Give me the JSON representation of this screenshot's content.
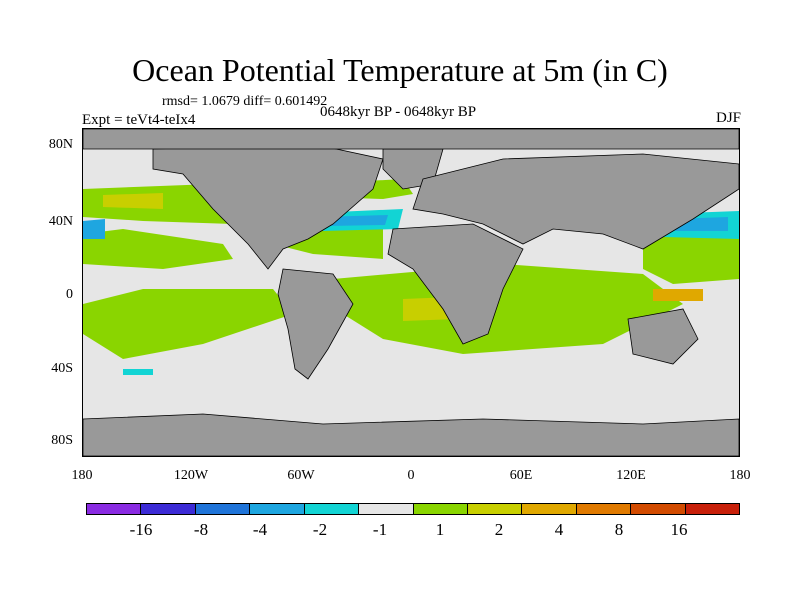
{
  "title": "Ocean Potential Temperature at 5m (in C)",
  "stats_line": "rmsd= 1.0679 diff= 0.601492",
  "experiment_label": "Expt = teVt4-teIx4",
  "period_label": "0648kyr BP - 0648kyr BP",
  "season_label": "DJF",
  "y_axis_labels": [
    "80N",
    "40N",
    "0",
    "40S",
    "80S"
  ],
  "x_axis_labels": [
    "180",
    "120W",
    "60W",
    "0",
    "60E",
    "120E",
    "180"
  ],
  "colorbar": {
    "colors": [
      "#8a2be2",
      "#3c2bd6",
      "#1f74d9",
      "#1ea6e0",
      "#12d4d4",
      "#e6e6e6",
      "#8ad500",
      "#c8cf00",
      "#e0a800",
      "#e07a00",
      "#d24b00",
      "#c8200a"
    ],
    "labels": [
      "-16",
      "-8",
      "-4",
      "-2",
      "-1",
      "1",
      "2",
      "4",
      "8",
      "16"
    ]
  },
  "map_colors": {
    "land": "#999999",
    "ocean_neutral": "#e6e6e6",
    "warm_green": "#8ad500",
    "warm_yellow": "#c8cf00",
    "cool_cyan": "#12d4d4",
    "cool_blue": "#1ea6e0",
    "deep_blue": "#1f74d9"
  }
}
